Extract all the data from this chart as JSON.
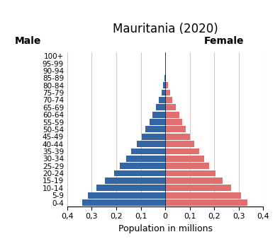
{
  "title": "Mauritania (2020)",
  "xlabel": "Population in millions",
  "male_label": "Male",
  "female_label": "Female",
  "age_groups": [
    "0-4",
    "5-9",
    "10-14",
    "15-19",
    "20-24",
    "25-29",
    "30-34",
    "35-39",
    "40-44",
    "45-49",
    "50-54",
    "55-59",
    "60-64",
    "65-69",
    "70-74",
    "75-79",
    "80-84",
    "85-89",
    "90-94",
    "95-99",
    "100+"
  ],
  "male": [
    0.34,
    0.315,
    0.28,
    0.245,
    0.21,
    0.185,
    0.16,
    0.138,
    0.115,
    0.095,
    0.08,
    0.065,
    0.052,
    0.038,
    0.026,
    0.016,
    0.008,
    0.003,
    0.001,
    0.0003,
    0.0001
  ],
  "female": [
    0.335,
    0.31,
    0.27,
    0.235,
    0.205,
    0.18,
    0.16,
    0.14,
    0.12,
    0.1,
    0.085,
    0.07,
    0.058,
    0.043,
    0.03,
    0.019,
    0.01,
    0.004,
    0.001,
    0.0003,
    0.0001
  ],
  "male_color": "#3465A4",
  "female_color": "#E07070",
  "xlim": 0.4,
  "xticks": [
    0.4,
    0.3,
    0.2,
    0.1,
    0.0,
    0.1,
    0.2,
    0.3,
    0.4
  ],
  "xtick_labels": [
    "0,4",
    "0,3",
    "0,2",
    "0,1",
    "0",
    "0,1",
    "0,2",
    "0,3",
    "0,4"
  ],
  "background_color": "#FFFFFF",
  "grid_color": "#CCCCCC",
  "bar_height": 0.85
}
